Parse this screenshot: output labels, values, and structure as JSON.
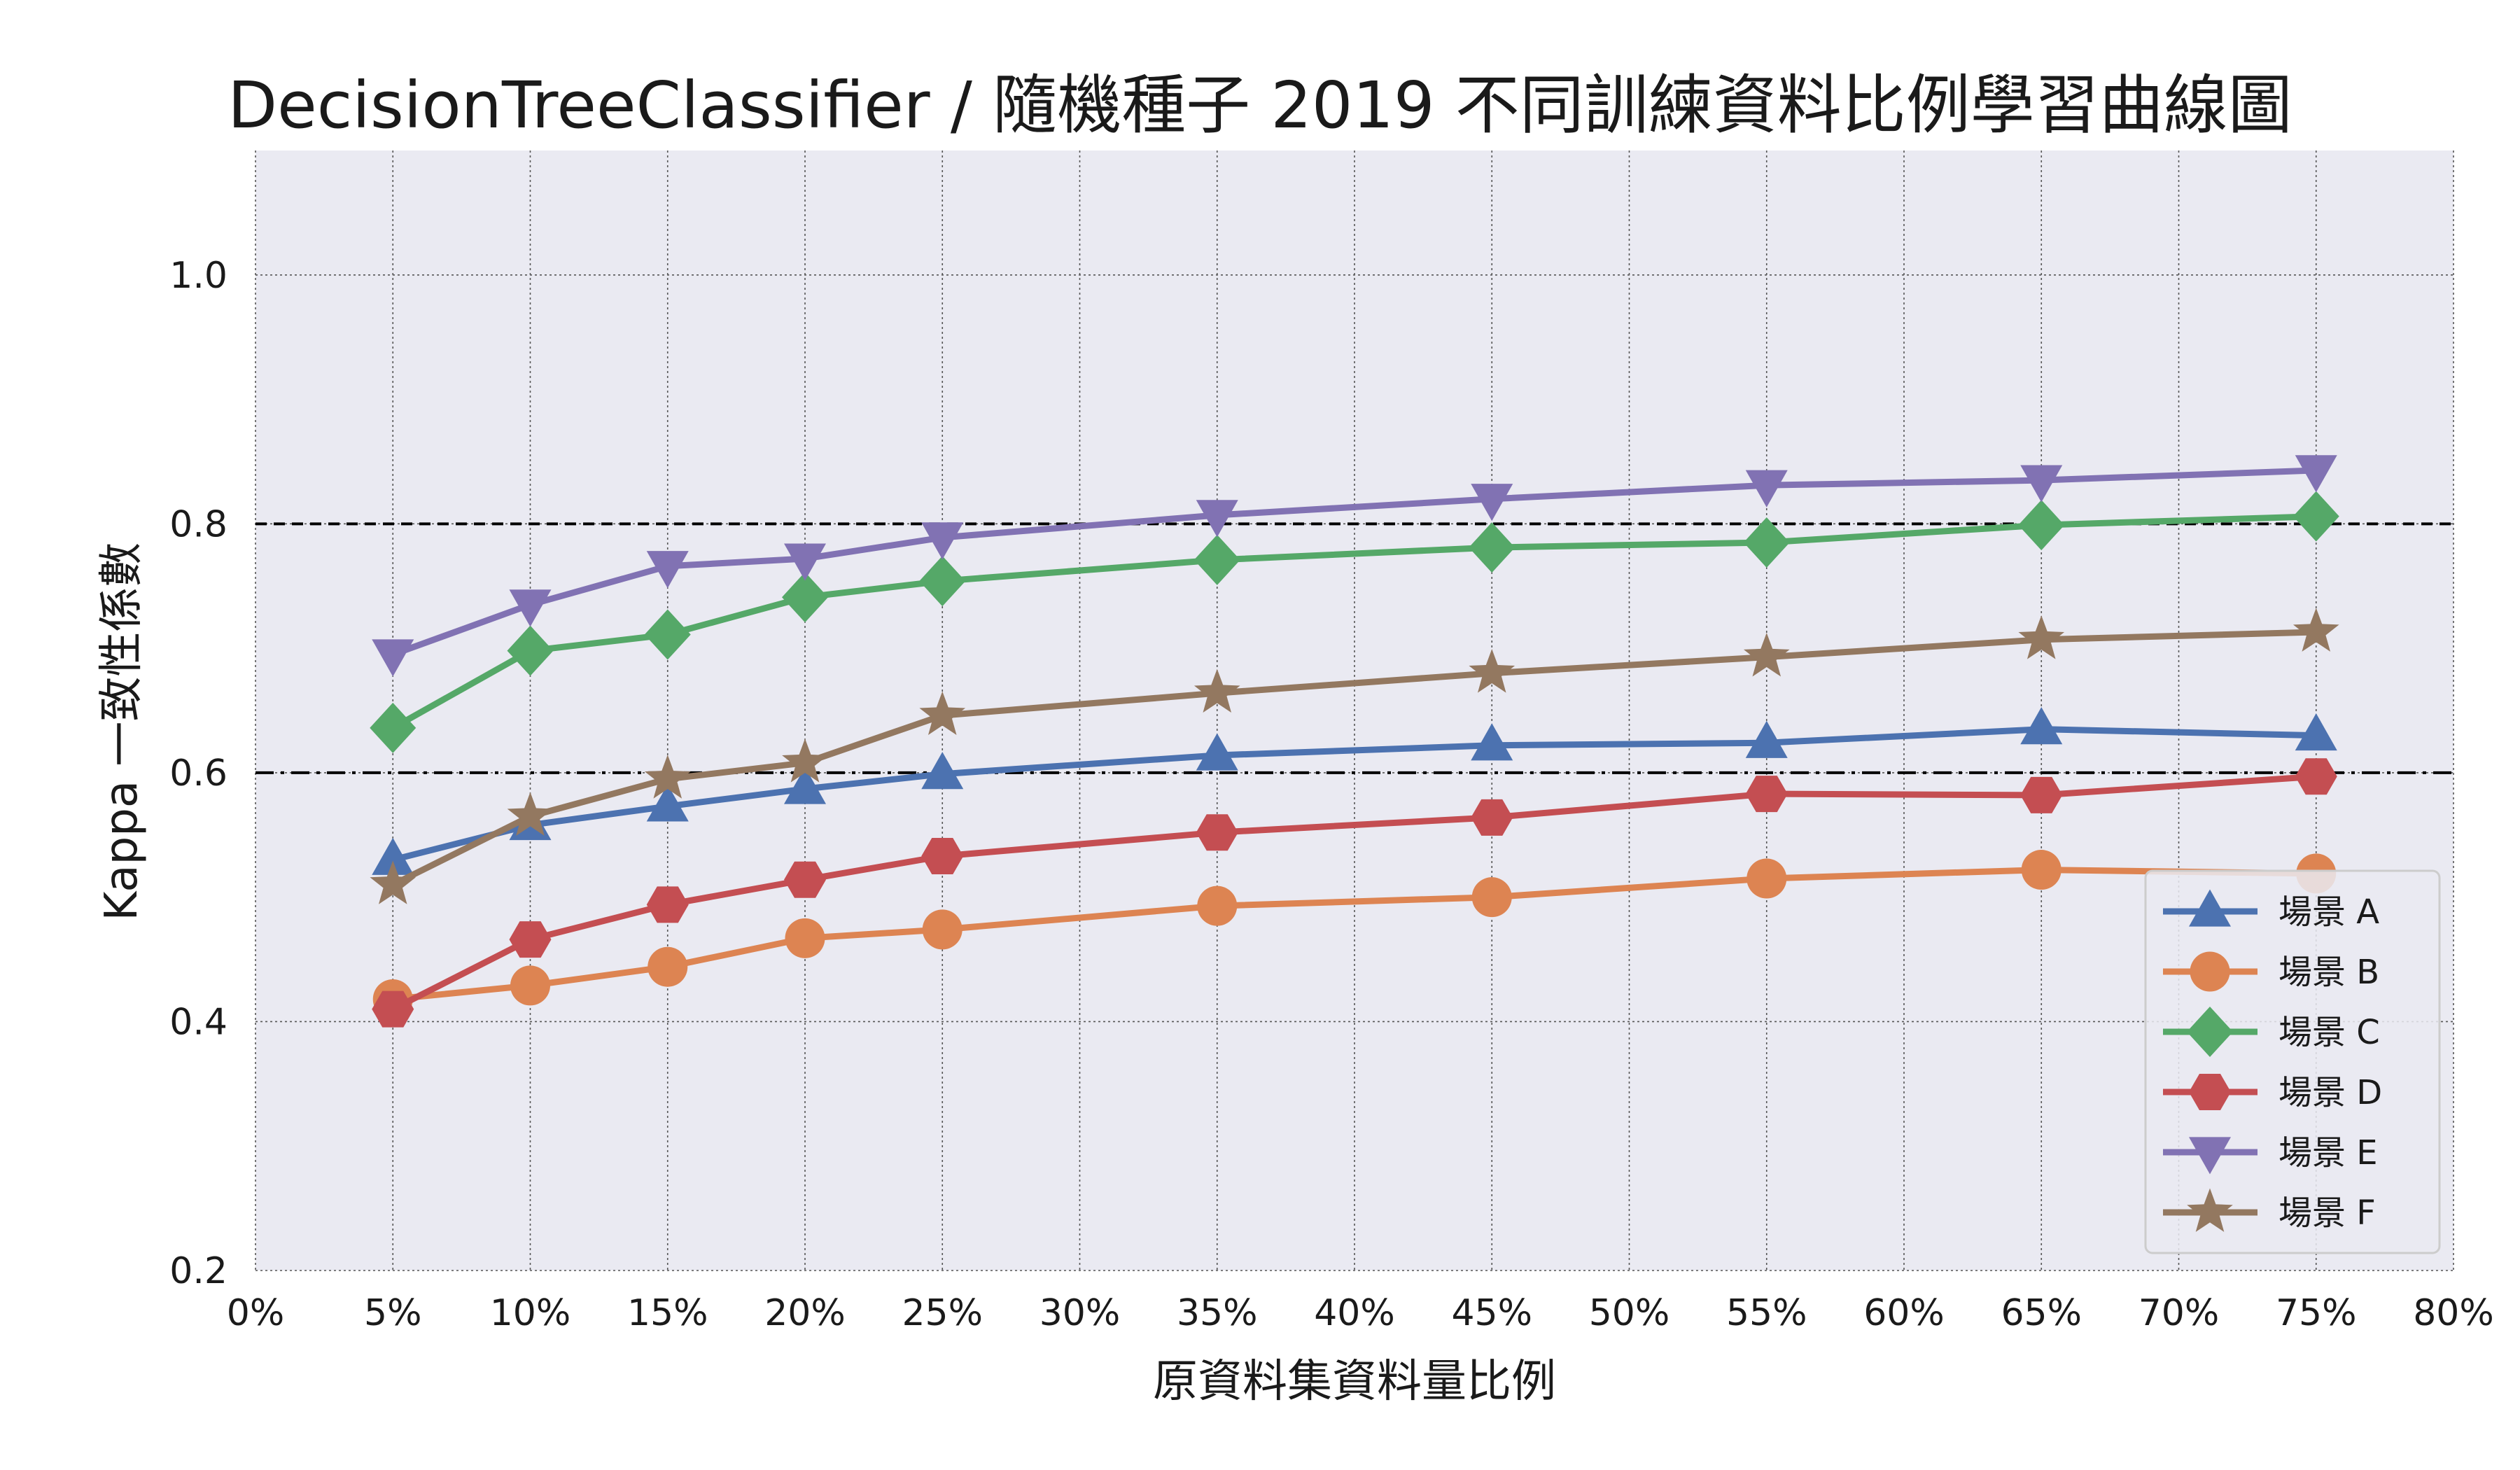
{
  "chart_data": {
    "type": "line",
    "title": "DecisionTreeClassifier / 隨機種子 2019 不同訓練資料比例學習曲線圖",
    "xlabel": "原資料集資料量比例",
    "ylabel": "Kappa 一致性係數",
    "xlim": [
      0,
      80
    ],
    "ylim": [
      0.2,
      1.1
    ],
    "xticks": [
      "0%",
      "5%",
      "10%",
      "15%",
      "20%",
      "25%",
      "30%",
      "35%",
      "40%",
      "45%",
      "50%",
      "55%",
      "60%",
      "65%",
      "70%",
      "75%",
      "80%"
    ],
    "yticks": [
      "0.2",
      "0.4",
      "0.6",
      "0.8",
      "1.0"
    ],
    "x": [
      5,
      10,
      15,
      20,
      25,
      35,
      45,
      55,
      65,
      75
    ],
    "grid": true,
    "background": "#eaeaf2",
    "reference_lines": [
      {
        "y": 0.8,
        "style": "dashed",
        "color": "#000000"
      },
      {
        "y": 0.6,
        "style": "dashdot",
        "color": "#000000"
      }
    ],
    "legend_position": "lower-right",
    "series": [
      {
        "name": "場景 A",
        "marker": "triangle-up",
        "color": "#4c72b0",
        "values": [
          0.53,
          0.558,
          0.573,
          0.587,
          0.599,
          0.614,
          0.622,
          0.624,
          0.635,
          0.63
        ]
      },
      {
        "name": "場景 B",
        "marker": "circle",
        "color": "#dd8452",
        "values": [
          0.418,
          0.429,
          0.444,
          0.467,
          0.474,
          0.493,
          0.5,
          0.515,
          0.522,
          0.519
        ]
      },
      {
        "name": "場景 C",
        "marker": "diamond",
        "color": "#55a868",
        "values": [
          0.636,
          0.698,
          0.711,
          0.741,
          0.754,
          0.771,
          0.781,
          0.785,
          0.799,
          0.806
        ]
      },
      {
        "name": "場景 D",
        "marker": "hexagon",
        "color": "#c44e52",
        "values": [
          0.41,
          0.466,
          0.494,
          0.514,
          0.533,
          0.552,
          0.564,
          0.583,
          0.582,
          0.597
        ]
      },
      {
        "name": "場景 E",
        "marker": "triangle-down",
        "color": "#8172b3",
        "values": [
          0.695,
          0.735,
          0.766,
          0.772,
          0.789,
          0.807,
          0.82,
          0.831,
          0.835,
          0.843
        ]
      },
      {
        "name": "場景 F",
        "marker": "star",
        "color": "#937860",
        "values": [
          0.51,
          0.565,
          0.595,
          0.608,
          0.646,
          0.664,
          0.68,
          0.693,
          0.707,
          0.713
        ]
      }
    ]
  }
}
